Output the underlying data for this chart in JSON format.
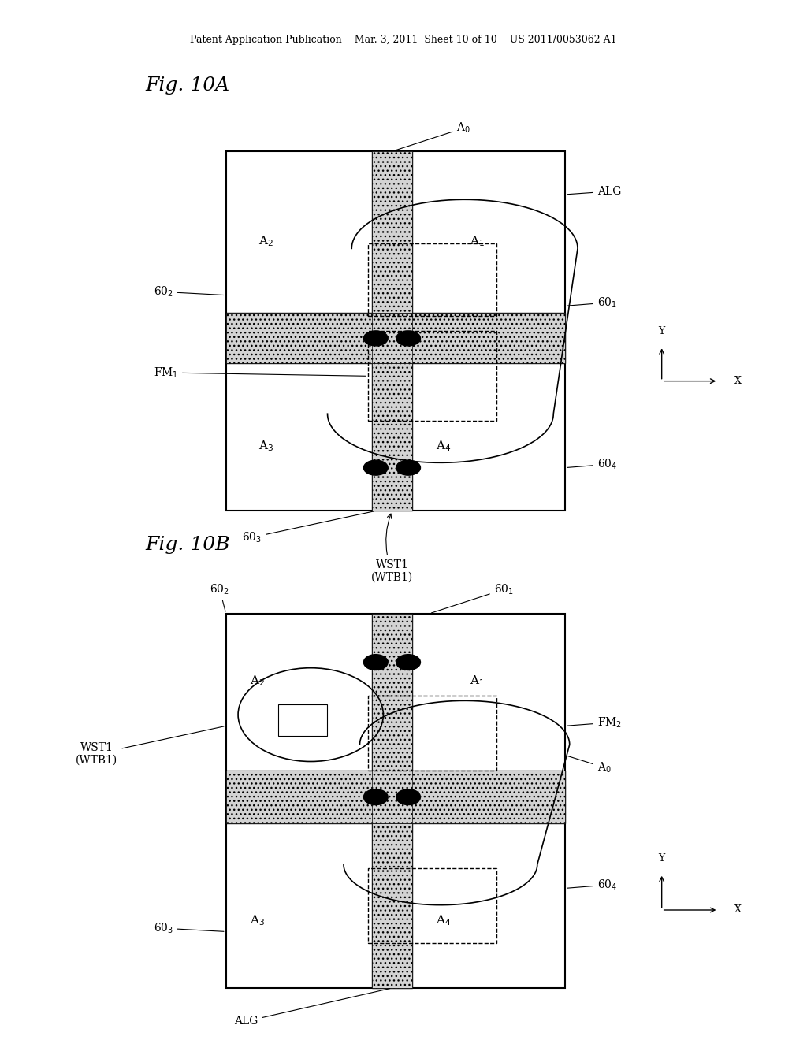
{
  "bg_color": "#ffffff",
  "header_text": "Patent Application Publication    Mar. 3, 2011  Sheet 10 of 10    US 2011/0053062 A1",
  "fig10A_title": "Fig. 10A",
  "fig10B_title": "Fig. 10B",
  "fig10A_labels": {
    "A0": "A₀",
    "A1": "A₁",
    "A2": "A₂",
    "A3": "A₃",
    "A4": "A₄",
    "ALG": "ALG",
    "601": "60₁",
    "602": "60₂",
    "603": "60₃",
    "604": "60₄",
    "FM1": "FM₁",
    "WST1": "WST1\n(WTB1)"
  },
  "fig10B_labels": {
    "A0": "A₀",
    "A1": "A₁",
    "A2": "A₂",
    "A3": "A₃",
    "A4": "A₄",
    "ALG": "ALG",
    "601": "60₁",
    "602": "60₂",
    "603": "60₃",
    "604": "60₄",
    "FM2": "FM₂",
    "WST1": "WST1\n(WTB1)"
  }
}
